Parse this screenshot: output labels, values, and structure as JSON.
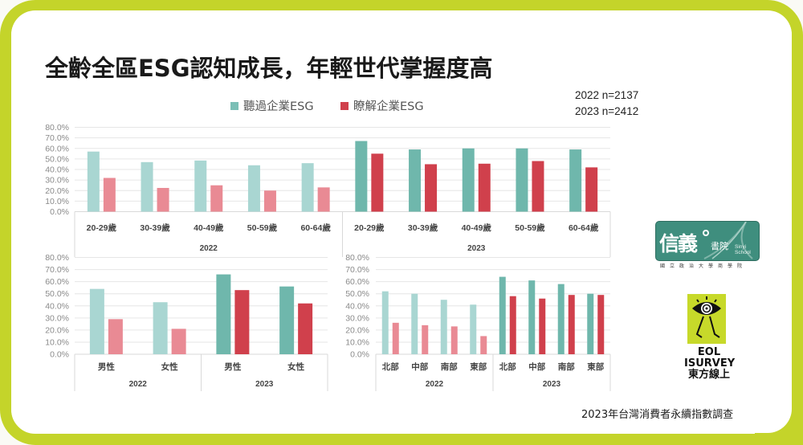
{
  "title": "全齡全區ESG認知成長，年輕世代掌握度高",
  "sample_sizes": [
    "2022 n=2137",
    "2023 n=2412"
  ],
  "legend": [
    {
      "label": "聽過企業ESG",
      "color": "#7bbfb6"
    },
    {
      "label": "瞭解企業ESG",
      "color": "#d0404c"
    }
  ],
  "colors": {
    "heard_2022": "#a9d6d2",
    "know_2022": "#e98a94",
    "heard_2023": "#6fb7ac",
    "know_2023": "#d0404c",
    "frame": "#c4d42a"
  },
  "source": "2023年台灣消費者永續指數調查",
  "logos": {
    "sinyi": {
      "main": "信義",
      "sub": "書院",
      "english": "Sinyi School",
      "caption": "國立政治大學商學院"
    },
    "eol": {
      "line1": "EOL",
      "line2": "ISURVEY",
      "line3": "東方線上"
    }
  },
  "chart_data": [
    {
      "type": "bar",
      "id": "age",
      "title": "",
      "xlabel": "",
      "ylabel": "",
      "ylim": [
        0,
        80
      ],
      "yticks": [
        "0.0%",
        "10.0%",
        "20.0%",
        "30.0%",
        "40.0%",
        "50.0%",
        "60.0%",
        "70.0%",
        "80.0%"
      ],
      "grid": true,
      "groups": [
        {
          "label": "2022",
          "categories": [
            "20-29歲",
            "30-39歲",
            "40-49歲",
            "50-59歲",
            "60-64歲"
          ],
          "series": [
            {
              "name": "聽過企業ESG",
              "values": [
                57,
                47,
                48.5,
                44,
                46
              ]
            },
            {
              "name": "瞭解企業ESG",
              "values": [
                32,
                22.5,
                25,
                20,
                23
              ]
            }
          ]
        },
        {
          "label": "2023",
          "categories": [
            "20-29歲",
            "30-39歲",
            "40-49歲",
            "50-59歲",
            "60-64歲"
          ],
          "series": [
            {
              "name": "聽過企業ESG",
              "values": [
                67,
                59,
                60,
                60,
                59
              ]
            },
            {
              "name": "瞭解企業ESG",
              "values": [
                55,
                45,
                45.5,
                48,
                42
              ]
            }
          ]
        }
      ]
    },
    {
      "type": "bar",
      "id": "gender",
      "title": "",
      "xlabel": "",
      "ylabel": "",
      "ylim": [
        0,
        80
      ],
      "yticks": [
        "0.0%",
        "10.0%",
        "20.0%",
        "30.0%",
        "40.0%",
        "50.0%",
        "60.0%",
        "70.0%",
        "80.0%"
      ],
      "grid": true,
      "groups": [
        {
          "label": "2022",
          "categories": [
            "男性",
            "女性"
          ],
          "series": [
            {
              "name": "聽過企業ESG",
              "values": [
                54,
                43
              ]
            },
            {
              "name": "瞭解企業ESG",
              "values": [
                29,
                21
              ]
            }
          ]
        },
        {
          "label": "2023",
          "categories": [
            "男性",
            "女性"
          ],
          "series": [
            {
              "name": "聽過企業ESG",
              "values": [
                66,
                56
              ]
            },
            {
              "name": "瞭解企業ESG",
              "values": [
                53,
                42
              ]
            }
          ]
        }
      ]
    },
    {
      "type": "bar",
      "id": "region",
      "title": "",
      "xlabel": "",
      "ylabel": "",
      "ylim": [
        0,
        80
      ],
      "yticks": [
        "0.0%",
        "10.0%",
        "20.0%",
        "30.0%",
        "40.0%",
        "50.0%",
        "60.0%",
        "70.0%",
        "80.0%"
      ],
      "grid": true,
      "groups": [
        {
          "label": "2022",
          "categories": [
            "北部",
            "中部",
            "南部",
            "東部"
          ],
          "series": [
            {
              "name": "聽過企業ESG",
              "values": [
                52,
                50,
                45,
                41
              ]
            },
            {
              "name": "瞭解企業ESG",
              "values": [
                26,
                24,
                23,
                15
              ]
            }
          ]
        },
        {
          "label": "2023",
          "categories": [
            "北部",
            "中部",
            "南部",
            "東部"
          ],
          "series": [
            {
              "name": "聽過企業ESG",
              "values": [
                64,
                61,
                58,
                50
              ]
            },
            {
              "name": "瞭解企業ESG",
              "values": [
                48,
                46,
                49,
                49
              ]
            }
          ]
        }
      ]
    }
  ]
}
